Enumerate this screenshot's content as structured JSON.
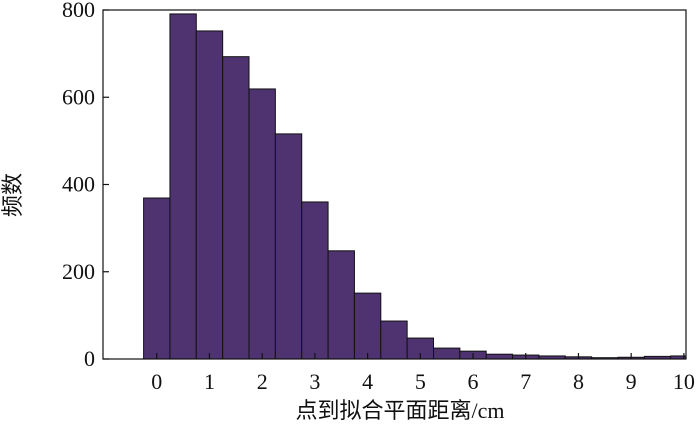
{
  "chart_data": {
    "type": "histogram",
    "xlabel": "点到拟合平面距离/cm",
    "ylabel": "频数",
    "bins": [
      -0.25,
      0.25,
      0.75,
      1.25,
      1.75,
      2.25,
      2.75,
      3.25,
      3.75,
      4.25,
      4.75,
      5.25,
      5.75,
      6.25,
      6.75,
      7.25,
      7.75,
      8.25,
      8.75,
      9.25,
      9.75,
      10.25
    ],
    "values": [
      369,
      791,
      752,
      693,
      619,
      516,
      360,
      248,
      151,
      87,
      48,
      25,
      18,
      11,
      9,
      7,
      5,
      3,
      4,
      6,
      7
    ],
    "color": "#4e3370",
    "xlim": [
      -1.02,
      10.04
    ],
    "ylim": [
      0,
      800
    ],
    "xticks": [
      0,
      1,
      2,
      3,
      4,
      5,
      6,
      7,
      8,
      9,
      10
    ],
    "yticks": [
      0,
      200,
      400,
      600,
      800
    ]
  }
}
